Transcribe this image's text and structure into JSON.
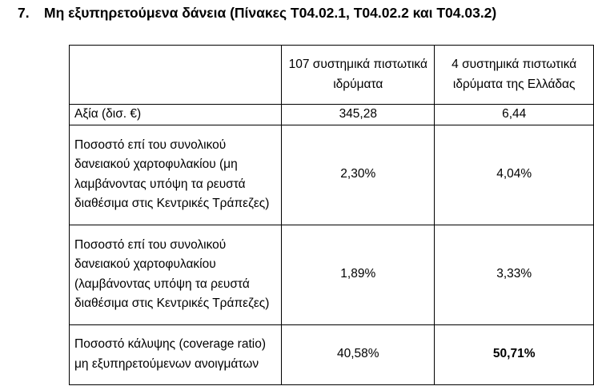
{
  "heading": {
    "number": "7.",
    "title": "Μη εξυπηρετούμενα δάνεια (Πίνακες Τ04.02.1, Τ04.02.2 και Τ04.03.2)"
  },
  "table": {
    "columns": [
      "",
      "107 συστημικά πιστωτικά ιδρύματα",
      "4 συστημικά πιστωτικά ιδρύματα της Ελλάδας"
    ],
    "rows": [
      {
        "label": "Αξία (δισ. €)",
        "v1": "345,28",
        "v2": "6,44"
      },
      {
        "label": "Ποσοστό επί του συνολικού δανειακού χαρτοφυλακίου (μη λαμβάνοντας υπόψη τα ρευστά διαθέσιμα στις Κεντρικές Τράπεζες)",
        "v1": "2,30%",
        "v2": "4,04%"
      },
      {
        "label": "Ποσοστό επί του συνολικού δανειακού χαρτοφυλακίου (λαμβάνοντας υπόψη τα ρευστά διαθέσιμα στις Κεντρικές Τράπεζες)",
        "v1": "1,89%",
        "v2": "3,33%"
      },
      {
        "label": "Ποσοστό κάλυψης (coverage ratio) μη εξυπηρετούμενων ανοιγμάτων",
        "v1": "40,58%",
        "v2": "50,71%"
      }
    ]
  }
}
